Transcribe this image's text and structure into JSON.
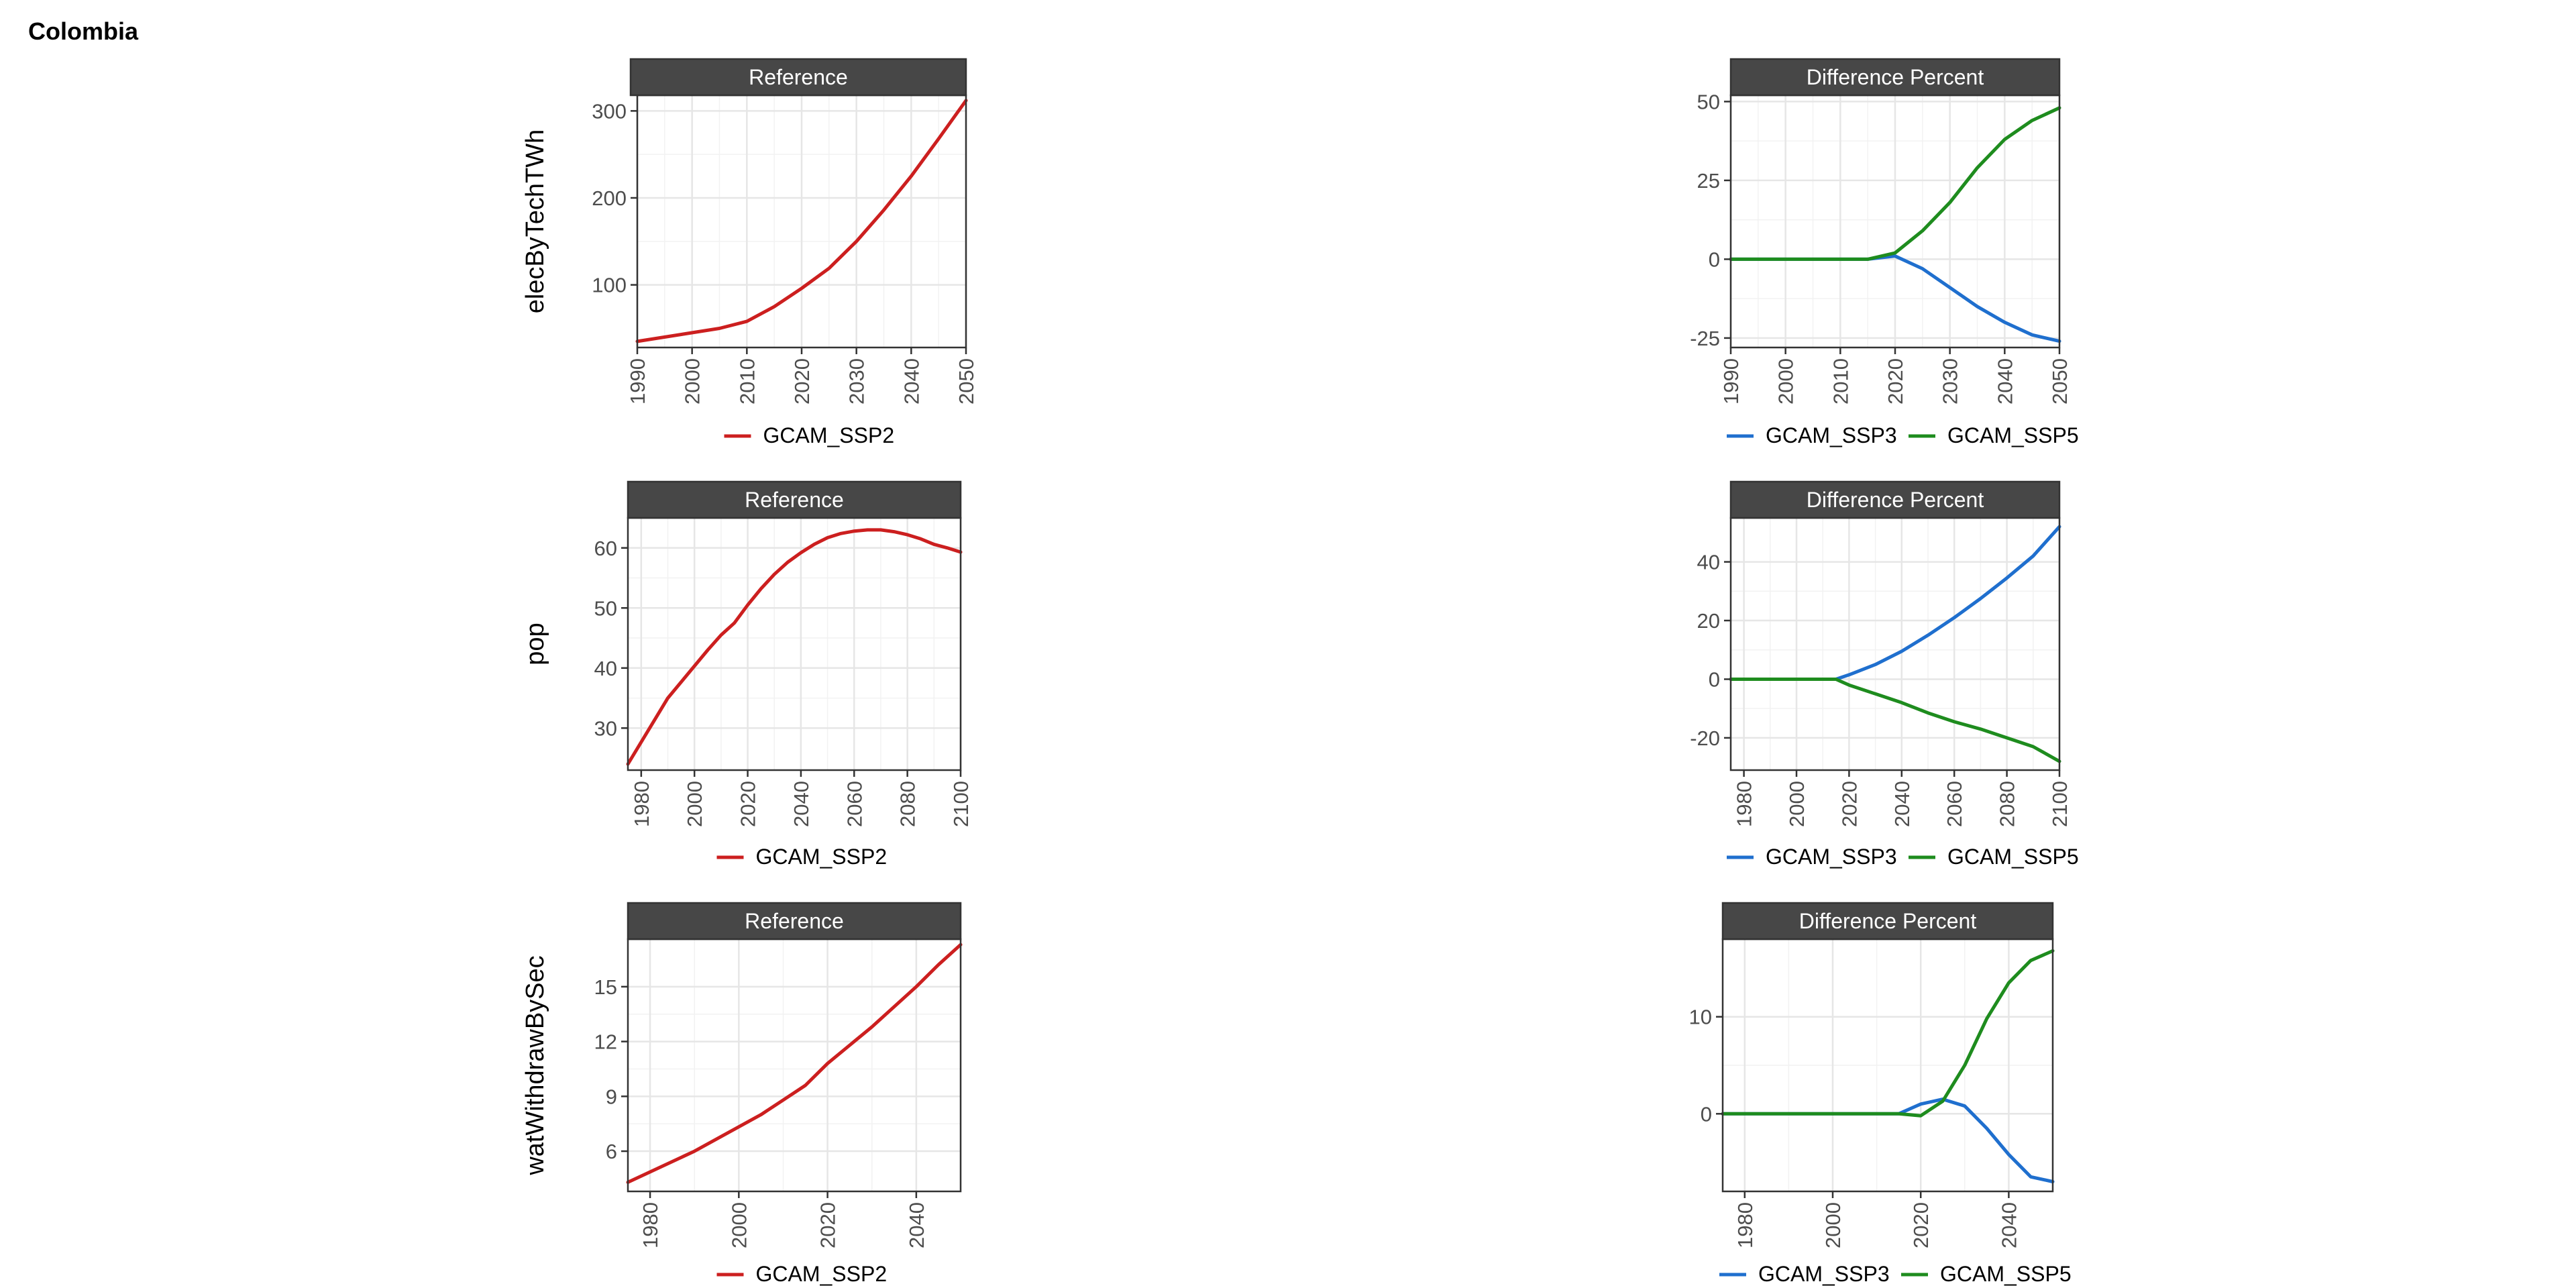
{
  "page": {
    "title": "Colombia"
  },
  "colors": {
    "GCAM_SSP2": "#cc1f1f",
    "GCAM_SSP3": "#1f6fce",
    "GCAM_SSP5": "#1e8c1e",
    "strip_bg": "#474747",
    "strip_text": "#ffffff"
  },
  "chart_data": [
    {
      "type": "line",
      "row_label": "elecByTechTWh",
      "strip": "Reference",
      "xlim": [
        1990,
        2050
      ],
      "ylim": [
        28,
        318
      ],
      "xticks": [
        1990,
        2000,
        2010,
        2020,
        2030,
        2040,
        2050
      ],
      "yticks": [
        100,
        200,
        300
      ],
      "legend": [
        "GCAM_SSP2"
      ],
      "series": [
        {
          "name": "GCAM_SSP2",
          "x": [
            1990,
            2005,
            2010,
            2015,
            2020,
            2025,
            2030,
            2035,
            2040,
            2045,
            2050
          ],
          "y": [
            35,
            50,
            58,
            75,
            96,
            119,
            150,
            186,
            225,
            268,
            312
          ]
        }
      ]
    },
    {
      "type": "line",
      "row_label": "",
      "strip": "Difference Percent",
      "xlim": [
        1990,
        2050
      ],
      "ylim": [
        -28,
        52
      ],
      "xticks": [
        1990,
        2000,
        2010,
        2020,
        2030,
        2040,
        2050
      ],
      "yticks": [
        -25,
        0,
        25,
        50
      ],
      "legend": [
        "GCAM_SSP3",
        "GCAM_SSP5"
      ],
      "series": [
        {
          "name": "GCAM_SSP3",
          "x": [
            1990,
            2005,
            2010,
            2015,
            2020,
            2025,
            2030,
            2035,
            2040,
            2045,
            2050
          ],
          "y": [
            0,
            0,
            0,
            0,
            1,
            -3,
            -9,
            -15,
            -20,
            -24,
            -26
          ]
        },
        {
          "name": "GCAM_SSP5",
          "x": [
            1990,
            2005,
            2010,
            2015,
            2020,
            2025,
            2030,
            2035,
            2040,
            2045,
            2050
          ],
          "y": [
            0,
            0,
            0,
            0,
            2,
            9,
            18,
            29,
            38,
            44,
            48
          ]
        }
      ]
    },
    {
      "type": "line",
      "row_label": "pop",
      "strip": "Reference",
      "xlim": [
        1975,
        2100
      ],
      "ylim": [
        23,
        65
      ],
      "xticks": [
        1980,
        2000,
        2020,
        2040,
        2060,
        2080,
        2100
      ],
      "yticks": [
        30,
        40,
        50,
        60
      ],
      "legend": [
        "GCAM_SSP2"
      ],
      "series": [
        {
          "name": "GCAM_SSP2",
          "x": [
            1975,
            1990,
            2005,
            2010,
            2015,
            2020,
            2025,
            2030,
            2035,
            2040,
            2045,
            2050,
            2055,
            2060,
            2065,
            2070,
            2075,
            2080,
            2085,
            2090,
            2095,
            2100
          ],
          "y": [
            24,
            35,
            43,
            45.5,
            47.5,
            50.5,
            53.2,
            55.6,
            57.6,
            59.2,
            60.6,
            61.7,
            62.4,
            62.8,
            63.0,
            63.0,
            62.7,
            62.2,
            61.5,
            60.6,
            60.0,
            59.3
          ]
        }
      ]
    },
    {
      "type": "line",
      "row_label": "",
      "strip": "Difference Percent",
      "xlim": [
        1975,
        2100
      ],
      "ylim": [
        -31,
        55
      ],
      "xticks": [
        1980,
        2000,
        2020,
        2040,
        2060,
        2080,
        2100
      ],
      "yticks": [
        -20,
        0,
        20,
        40
      ],
      "legend": [
        "GCAM_SSP3",
        "GCAM_SSP5"
      ],
      "series": [
        {
          "name": "GCAM_SSP3",
          "x": [
            1975,
            2000,
            2015,
            2020,
            2030,
            2040,
            2050,
            2060,
            2070,
            2080,
            2090,
            2100
          ],
          "y": [
            0,
            0,
            0,
            1.5,
            5,
            9.5,
            15,
            21,
            27.5,
            34.5,
            42,
            52
          ]
        },
        {
          "name": "GCAM_SSP5",
          "x": [
            1975,
            2000,
            2015,
            2020,
            2030,
            2040,
            2050,
            2060,
            2070,
            2080,
            2090,
            2100
          ],
          "y": [
            0,
            0,
            0,
            -2,
            -5,
            -8,
            -11.5,
            -14.5,
            -17,
            -20,
            -23,
            -28
          ]
        }
      ]
    },
    {
      "type": "line",
      "row_label": "watWithdrawBySec",
      "strip": "Reference",
      "xlim": [
        1975,
        2050
      ],
      "ylim": [
        3.8,
        17.6
      ],
      "xticks": [
        1980,
        2000,
        2020,
        2040
      ],
      "yticks": [
        6,
        9,
        12,
        15
      ],
      "legend": [
        "GCAM_SSP2"
      ],
      "series": [
        {
          "name": "GCAM_SSP2",
          "x": [
            1975,
            1990,
            2005,
            2010,
            2015,
            2020,
            2025,
            2030,
            2035,
            2040,
            2045,
            2050
          ],
          "y": [
            4.3,
            6.0,
            8.0,
            8.8,
            9.6,
            10.8,
            11.8,
            12.8,
            13.9,
            15.0,
            16.2,
            17.3
          ]
        }
      ]
    },
    {
      "type": "line",
      "row_label": "",
      "strip": "Difference Percent",
      "xlim": [
        1975,
        2050
      ],
      "ylim": [
        -8,
        18
      ],
      "xticks": [
        1980,
        2000,
        2020,
        2040
      ],
      "yticks": [
        0,
        10
      ],
      "legend": [
        "GCAM_SSP3",
        "GCAM_SSP5"
      ],
      "series": [
        {
          "name": "GCAM_SSP3",
          "x": [
            1975,
            2000,
            2015,
            2020,
            2025,
            2030,
            2035,
            2040,
            2045,
            2050
          ],
          "y": [
            0,
            0,
            0,
            1,
            1.5,
            0.8,
            -1.5,
            -4.2,
            -6.5,
            -7
          ]
        },
        {
          "name": "GCAM_SSP5",
          "x": [
            1975,
            2000,
            2015,
            2020,
            2025,
            2030,
            2035,
            2040,
            2045,
            2050
          ],
          "y": [
            0,
            0,
            0,
            -0.2,
            1.3,
            5,
            9.8,
            13.5,
            15.8,
            16.8
          ]
        }
      ]
    }
  ]
}
